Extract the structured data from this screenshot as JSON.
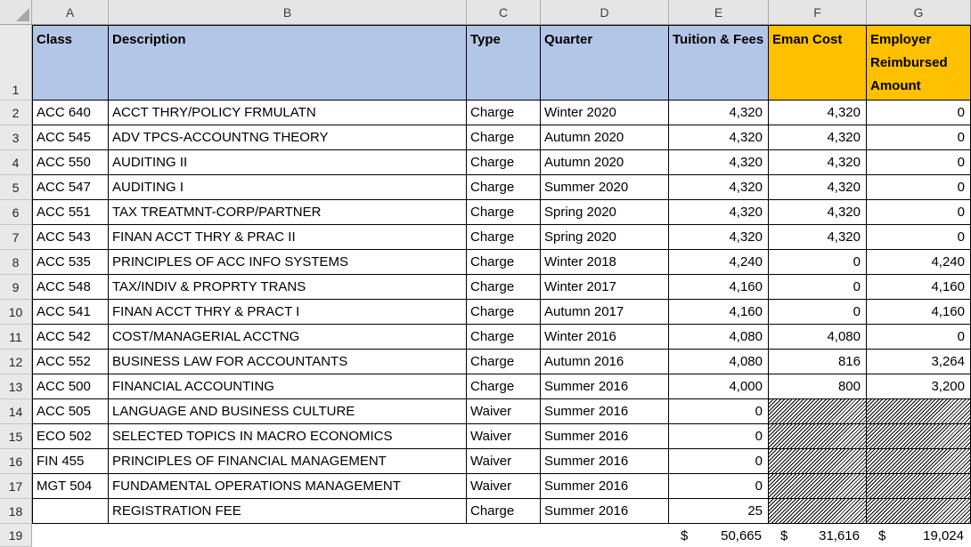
{
  "sheet": {
    "column_letters": [
      "A",
      "B",
      "C",
      "D",
      "E",
      "F",
      "G"
    ],
    "first_row_number": "1",
    "totals_row_number": "19",
    "headers": {
      "class": "Class",
      "description": "Description",
      "type": "Type",
      "quarter": "Quarter",
      "tuition_fees": "Tuition & Fees",
      "eman_cost": "Eman Cost",
      "employer_reimbursed": "Employer Reimbursed Amount"
    },
    "rows": [
      {
        "n": "2",
        "class": "ACC 640",
        "description": "ACCT THRY/POLICY FRMULATN",
        "type": "Charge",
        "quarter": "Winter 2020",
        "tuition_fees": "4,320",
        "eman_cost": "4,320",
        "employer_reimbursed": "0"
      },
      {
        "n": "3",
        "class": "ACC 545",
        "description": "ADV TPCS-ACCOUNTNG THEORY",
        "type": "Charge",
        "quarter": "Autumn 2020",
        "tuition_fees": "4,320",
        "eman_cost": "4,320",
        "employer_reimbursed": "0"
      },
      {
        "n": "4",
        "class": "ACC 550",
        "description": "AUDITING II",
        "type": "Charge",
        "quarter": "Autumn 2020",
        "tuition_fees": "4,320",
        "eman_cost": "4,320",
        "employer_reimbursed": "0"
      },
      {
        "n": "5",
        "class": "ACC 547",
        "description": "AUDITING I",
        "type": "Charge",
        "quarter": "Summer 2020",
        "tuition_fees": "4,320",
        "eman_cost": "4,320",
        "employer_reimbursed": "0"
      },
      {
        "n": "6",
        "class": "ACC 551",
        "description": "TAX TREATMNT-CORP/PARTNER",
        "type": "Charge",
        "quarter": "Spring 2020",
        "tuition_fees": "4,320",
        "eman_cost": "4,320",
        "employer_reimbursed": "0"
      },
      {
        "n": "7",
        "class": "ACC 543",
        "description": "FINAN ACCT THRY & PRAC II",
        "type": "Charge",
        "quarter": "Spring 2020",
        "tuition_fees": "4,320",
        "eman_cost": "4,320",
        "employer_reimbursed": "0"
      },
      {
        "n": "8",
        "class": "ACC 535",
        "description": "PRINCIPLES OF ACC INFO SYSTEMS",
        "type": "Charge",
        "quarter": "Winter 2018",
        "tuition_fees": "4,240",
        "eman_cost": "0",
        "employer_reimbursed": "4,240"
      },
      {
        "n": "9",
        "class": "ACC 548",
        "description": "TAX/INDIV & PROPRTY TRANS",
        "type": "Charge",
        "quarter": "Winter 2017",
        "tuition_fees": "4,160",
        "eman_cost": "0",
        "employer_reimbursed": "4,160"
      },
      {
        "n": "10",
        "class": "ACC 541",
        "description": "FINAN ACCT THRY & PRACT I",
        "type": "Charge",
        "quarter": "Autumn 2017",
        "tuition_fees": "4,160",
        "eman_cost": "0",
        "employer_reimbursed": "4,160"
      },
      {
        "n": "11",
        "class": "ACC 542",
        "description": "COST/MANAGERIAL ACCTNG",
        "type": "Charge",
        "quarter": "Winter 2016",
        "tuition_fees": "4,080",
        "eman_cost": "4,080",
        "employer_reimbursed": "0"
      },
      {
        "n": "12",
        "class": "ACC 552",
        "description": "BUSINESS LAW FOR ACCOUNTANTS",
        "type": "Charge",
        "quarter": "Autumn 2016",
        "tuition_fees": "4,080",
        "eman_cost": "816",
        "employer_reimbursed": "3,264"
      },
      {
        "n": "13",
        "class": "ACC 500",
        "description": "FINANCIAL ACCOUNTING",
        "type": "Charge",
        "quarter": "Summer 2016",
        "tuition_fees": "4,000",
        "eman_cost": "800",
        "employer_reimbursed": "3,200"
      },
      {
        "n": "14",
        "class": "ACC 505",
        "description": "LANGUAGE AND BUSINESS CULTURE",
        "type": "Waiver",
        "quarter": "Summer 2016",
        "tuition_fees": "0",
        "eman_cost": null,
        "employer_reimbursed": null
      },
      {
        "n": "15",
        "class": "ECO 502",
        "description": "SELECTED TOPICS IN MACRO ECONOMICS",
        "type": "Waiver",
        "quarter": "Summer 2016",
        "tuition_fees": "0",
        "eman_cost": null,
        "employer_reimbursed": null
      },
      {
        "n": "16",
        "class": "FIN 455",
        "description": "PRINCIPLES OF FINANCIAL MANAGEMENT",
        "type": "Waiver",
        "quarter": "Summer 2016",
        "tuition_fees": "0",
        "eman_cost": null,
        "employer_reimbursed": null
      },
      {
        "n": "17",
        "class": "MGT 504",
        "description": "FUNDAMENTAL OPERATIONS MANAGEMENT",
        "type": "Waiver",
        "quarter": "Summer 2016",
        "tuition_fees": "0",
        "eman_cost": null,
        "employer_reimbursed": null
      },
      {
        "n": "18",
        "class": "",
        "description": "REGISTRATION FEE",
        "type": "Charge",
        "quarter": "Summer 2016",
        "tuition_fees": "25",
        "eman_cost": null,
        "employer_reimbursed": null
      }
    ],
    "totals": {
      "currency": "$",
      "tuition_fees": "50,665",
      "eman_cost": "31,616",
      "employer_reimbursed": "19,024"
    },
    "colors": {
      "header_blue": "#B4C6E7",
      "header_orange": "#FFC000"
    }
  }
}
